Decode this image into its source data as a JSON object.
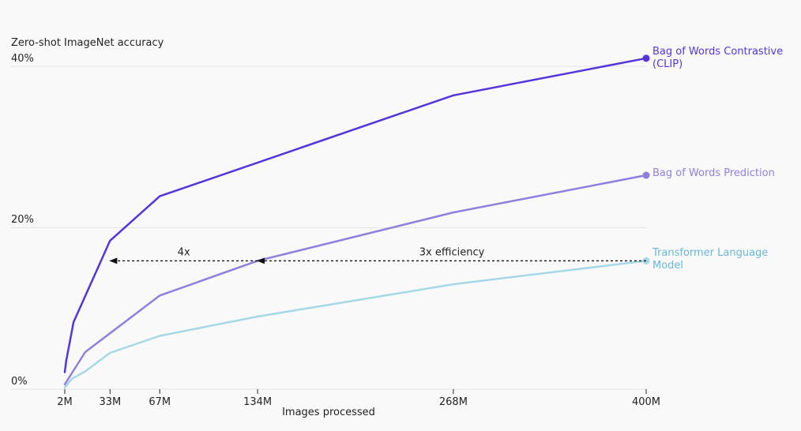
{
  "chart_data": {
    "type": "line",
    "title": "",
    "ylabel": "Zero-shot ImageNet accuracy",
    "xlabel": "Images processed",
    "x_ticks": [
      2,
      33,
      67,
      134,
      268,
      400
    ],
    "x_tick_labels": [
      "2M",
      "33M",
      "67M",
      "134M",
      "268M",
      "400M"
    ],
    "y_ticks": [
      0,
      20,
      40
    ],
    "y_tick_labels": [
      "0%",
      "20%",
      "40%"
    ],
    "xlim": [
      2,
      400
    ],
    "ylim": [
      0,
      40
    ],
    "grid": "horizontal",
    "series": [
      {
        "name": "Bag of Words Contrastive (CLIP)",
        "label_lines": [
          "Bag of Words Contrastive",
          "(CLIP)"
        ],
        "color": "#5533dd",
        "x": [
          2,
          3,
          8,
          33,
          67,
          268,
          400
        ],
        "y": [
          2.1,
          3.5,
          8.3,
          18.4,
          23.9,
          36.4,
          41.0
        ]
      },
      {
        "name": "Bag of Words Prediction",
        "label_lines": [
          "Bag of Words Prediction"
        ],
        "color": "#8f80e0",
        "x": [
          2,
          16,
          67,
          134,
          268,
          400
        ],
        "y": [
          0.6,
          4.6,
          11.6,
          15.9,
          21.9,
          26.5
        ]
      },
      {
        "name": "Transformer Language Model",
        "label_lines": [
          "Transformer Language",
          "Model"
        ],
        "color": "#a5d8e6",
        "label_color": "#66b8d8",
        "x": [
          2,
          7,
          16,
          33,
          67,
          134,
          268,
          400
        ],
        "y": [
          0.2,
          1.3,
          2.2,
          4.5,
          6.6,
          9.0,
          13.0,
          15.9
        ]
      }
    ],
    "annotations": [
      {
        "text": "4x",
        "y": 15.9,
        "x_from": 134,
        "x_to": 33
      },
      {
        "text": "3x efficiency",
        "y": 15.9,
        "x_from": 400,
        "x_to": 134
      }
    ]
  }
}
